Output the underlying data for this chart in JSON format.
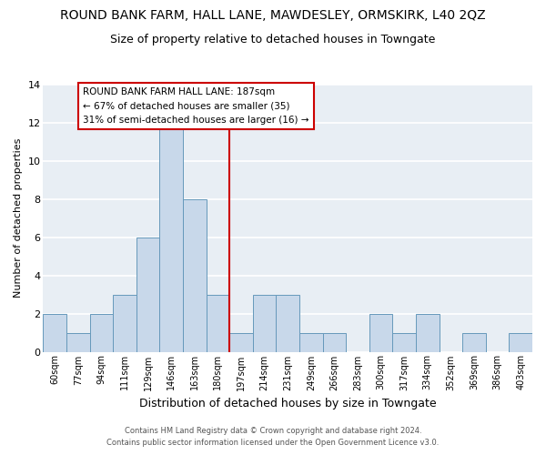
{
  "title": "ROUND BANK FARM, HALL LANE, MAWDESLEY, ORMSKIRK, L40 2QZ",
  "subtitle": "Size of property relative to detached houses in Towngate",
  "xlabel": "Distribution of detached houses by size in Towngate",
  "ylabel": "Number of detached properties",
  "bar_labels": [
    "60sqm",
    "77sqm",
    "94sqm",
    "111sqm",
    "129sqm",
    "146sqm",
    "163sqm",
    "180sqm",
    "197sqm",
    "214sqm",
    "231sqm",
    "249sqm",
    "266sqm",
    "283sqm",
    "300sqm",
    "317sqm",
    "334sqm",
    "352sqm",
    "369sqm",
    "386sqm",
    "403sqm"
  ],
  "bar_values": [
    2,
    1,
    2,
    3,
    6,
    12,
    8,
    3,
    1,
    3,
    3,
    1,
    1,
    0,
    2,
    1,
    2,
    0,
    1,
    0,
    1
  ],
  "bar_color": "#c8d8ea",
  "bar_edge_color": "#6699bb",
  "ylim": [
    0,
    14
  ],
  "yticks": [
    0,
    2,
    4,
    6,
    8,
    10,
    12,
    14
  ],
  "vline_color": "#cc0000",
  "annotation_lines": [
    "ROUND BANK FARM HALL LANE: 187sqm",
    "← 67% of detached houses are smaller (35)",
    "31% of semi-detached houses are larger (16) →"
  ],
  "footer_line1": "Contains HM Land Registry data © Crown copyright and database right 2024.",
  "footer_line2": "Contains public sector information licensed under the Open Government Licence v3.0.",
  "background_color": "#ffffff",
  "plot_bg_color": "#e8eef4",
  "title_fontsize": 10,
  "subtitle_fontsize": 9
}
